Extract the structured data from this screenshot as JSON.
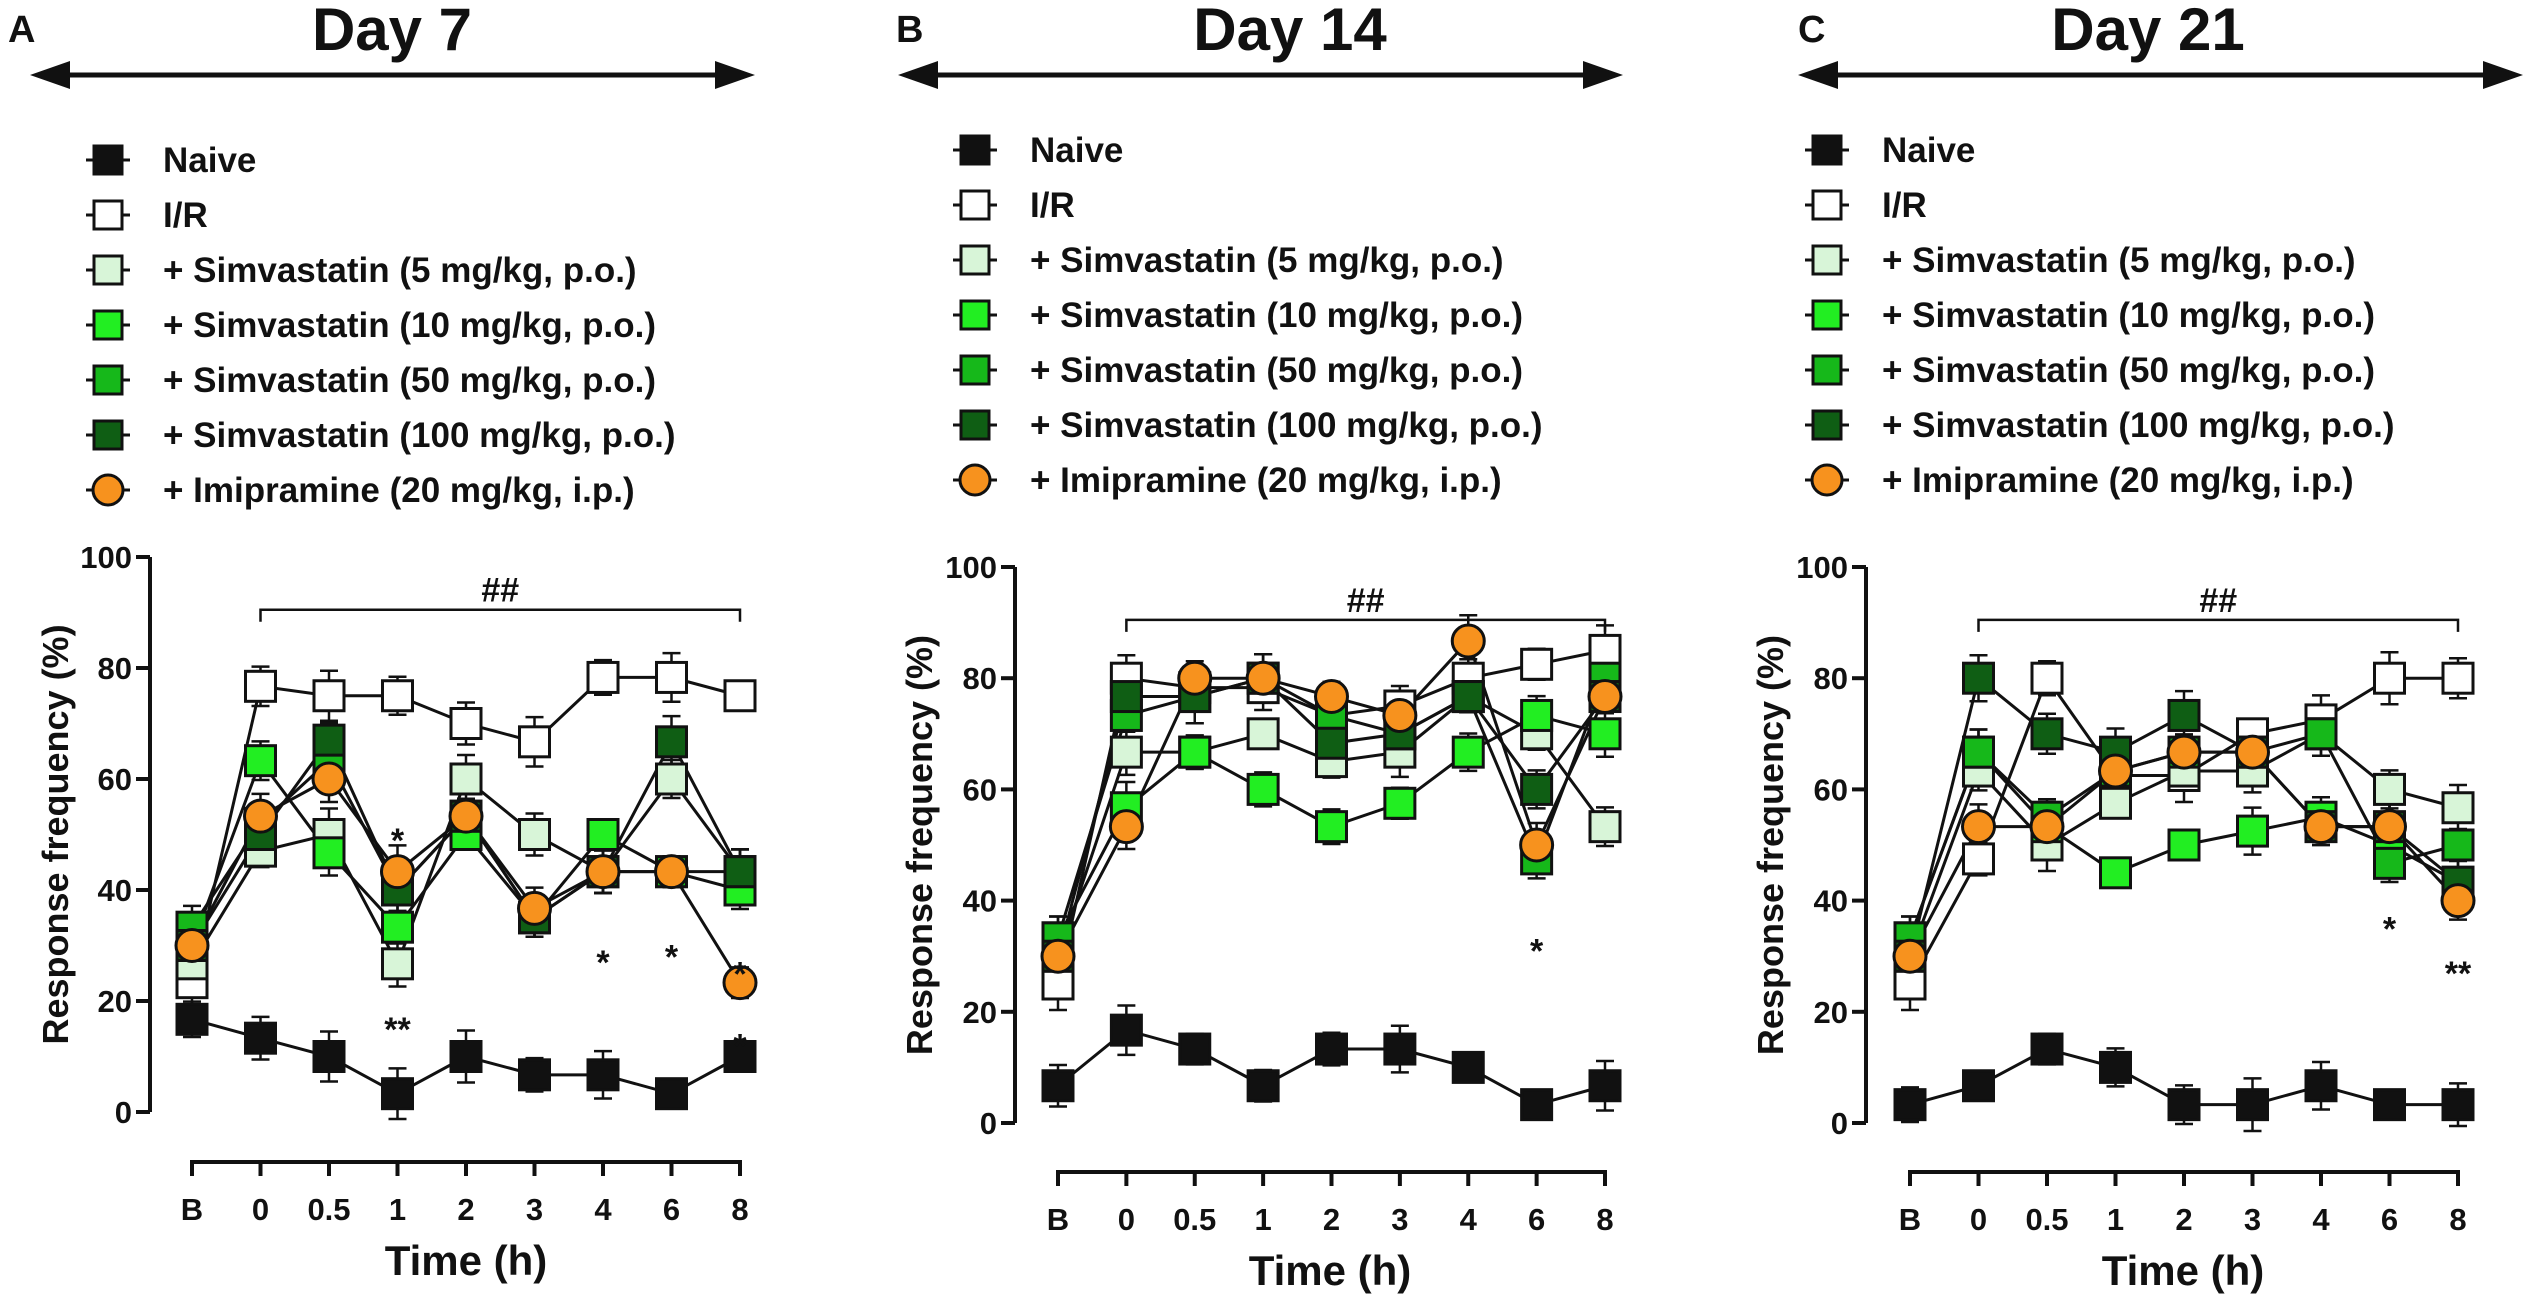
{
  "figure": {
    "series_styles": [
      {
        "name": "Naive",
        "marker": "square",
        "fill": "#111111"
      },
      {
        "name": "I/R",
        "marker": "square",
        "fill": "#ffffff"
      },
      {
        "name": "+ Simvastatin (5 mg/kg, p.o.)",
        "marker": "square",
        "fill": "#d8f5d8"
      },
      {
        "name": "+ Simvastatin (10 mg/kg, p.o.)",
        "marker": "square",
        "fill": "#22ee22"
      },
      {
        "name": "+ Simvastatin (50 mg/kg, p.o.)",
        "marker": "square",
        "fill": "#16b81a"
      },
      {
        "name": "+ Simvastatin (100 mg/kg, p.o.)",
        "marker": "square",
        "fill": "#0f5e14"
      },
      {
        "name": "+ Imipramine (20 mg/kg, i.p.)",
        "marker": "circle",
        "fill": "#f7921e"
      }
    ]
  },
  "chart_data": [
    {
      "type": "line",
      "panel": "A",
      "title": "Day 7",
      "xlabel": "Time (h)",
      "ylabel": "Response frequency (%)",
      "categories": [
        "B",
        "0",
        "0.5",
        "1",
        "2",
        "3",
        "4",
        "6",
        "8"
      ],
      "ylim": [
        0,
        100
      ],
      "yticks": [
        0,
        20,
        40,
        60,
        80,
        100
      ],
      "bracket_label": "##",
      "series": [
        {
          "name": "Naive",
          "values": [
            16.7,
            13.3,
            10,
            3.3,
            10,
            6.7,
            6.7,
            3.3,
            10
          ]
        },
        {
          "name": "I/R",
          "values": [
            23.3,
            76.7,
            75,
            75,
            70,
            66.7,
            78.3,
            78.3,
            75
          ]
        },
        {
          "name": "+ Simvastatin (5 mg/kg, p.o.)",
          "values": [
            26.7,
            47,
            50,
            26.7,
            60,
            50,
            43.3,
            60,
            43.3
          ]
        },
        {
          "name": "+ Simvastatin (10 mg/kg, p.o.)",
          "values": [
            30,
            63.3,
            46.7,
            33.3,
            50,
            35,
            50,
            43.3,
            40
          ]
        },
        {
          "name": "+ Simvastatin (50 mg/kg, p.o.)",
          "values": [
            33.3,
            52,
            63.3,
            40,
            53.3,
            35,
            43.3,
            43.3,
            43.3
          ]
        },
        {
          "name": "+ Simvastatin (100 mg/kg, p.o.)",
          "values": [
            30,
            50,
            67,
            40,
            53.3,
            35,
            43.3,
            66.7,
            43.3
          ]
        },
        {
          "name": "+ Imipramine (20 mg/kg, i.p.)",
          "values": [
            30,
            53.3,
            60,
            43.3,
            53.3,
            36.7,
            43.3,
            43.3,
            23.3
          ]
        }
      ],
      "annotations": [
        {
          "text": "*",
          "x": "1",
          "y": 49
        },
        {
          "text": "**",
          "x": "1",
          "y": 15
        },
        {
          "text": "*",
          "x": "4",
          "y": 27
        },
        {
          "text": "*",
          "x": "6",
          "y": 28
        },
        {
          "text": "*",
          "x": "8",
          "y": 25
        },
        {
          "text": "*",
          "x": "8",
          "y": 12
        }
      ]
    },
    {
      "type": "line",
      "panel": "B",
      "title": "Day 14",
      "xlabel": "Time (h)",
      "ylabel": "Response frequency (%)",
      "categories": [
        "B",
        "0",
        "0.5",
        "1",
        "2",
        "3",
        "4",
        "6",
        "8"
      ],
      "ylim": [
        0,
        100
      ],
      "yticks": [
        0,
        20,
        40,
        60,
        80,
        100
      ],
      "bracket_label": "##",
      "series": [
        {
          "name": "Naive",
          "values": [
            6.7,
            16.7,
            13.3,
            6.7,
            13.3,
            13.3,
            10,
            3.3,
            6.7
          ]
        },
        {
          "name": "I/R",
          "values": [
            25,
            80,
            78.3,
            78.3,
            73.3,
            75,
            80,
            82.5,
            85
          ]
        },
        {
          "name": "+ Simvastatin (5 mg/kg, p.o.)",
          "values": [
            30,
            66.7,
            66.7,
            70,
            65,
            66.7,
            76.7,
            70,
            53.3
          ]
        },
        {
          "name": "+ Simvastatin (10 mg/kg, p.o.)",
          "values": [
            33.3,
            56.7,
            66.7,
            60,
            53.3,
            57.5,
            66.7,
            73.3,
            70
          ]
        },
        {
          "name": "+ Simvastatin (50 mg/kg, p.o.)",
          "values": [
            33.3,
            73.3,
            76.7,
            80,
            73.3,
            70,
            76.7,
            47.5,
            80
          ]
        },
        {
          "name": "+ Simvastatin (100 mg/kg, p.o.)",
          "values": [
            30,
            76.7,
            76.7,
            80,
            68.3,
            70,
            76.7,
            60,
            76.7
          ]
        },
        {
          "name": "+ Imipramine (20 mg/kg, i.p.)",
          "values": [
            30,
            53.3,
            80,
            80,
            76.7,
            73.3,
            86.7,
            50,
            76.7
          ]
        }
      ],
      "annotations": [
        {
          "text": "*",
          "x": "6",
          "y": 31
        }
      ]
    },
    {
      "type": "line",
      "panel": "C",
      "title": "Day 21",
      "xlabel": "Time (h)",
      "ylabel": "Response frequency (%)",
      "categories": [
        "B",
        "0",
        "0.5",
        "1",
        "2",
        "3",
        "4",
        "6",
        "8"
      ],
      "ylim": [
        0,
        100
      ],
      "yticks": [
        0,
        20,
        40,
        60,
        80,
        100
      ],
      "bracket_label": "##",
      "series": [
        {
          "name": "Naive",
          "values": [
            3.3,
            6.7,
            13.3,
            10,
            3.3,
            3.3,
            6.7,
            3.3,
            3.3
          ]
        },
        {
          "name": "I/R",
          "values": [
            25,
            47.5,
            80,
            62.5,
            62.5,
            70,
            72.5,
            80,
            80
          ]
        },
        {
          "name": "+ Simvastatin (5 mg/kg, p.o.)",
          "values": [
            30,
            63.3,
            50,
            57.5,
            63.3,
            63.3,
            70,
            60,
            56.7
          ]
        },
        {
          "name": "+ Simvastatin (10 mg/kg, p.o.)",
          "values": [
            33.3,
            66.7,
            53.3,
            45,
            50,
            52.5,
            55,
            50,
            43.3
          ]
        },
        {
          "name": "+ Simvastatin (50 mg/kg, p.o.)",
          "values": [
            33.3,
            66.7,
            55,
            63.3,
            66.7,
            66.7,
            70,
            46.7,
            50
          ]
        },
        {
          "name": "+ Simvastatin (100 mg/kg, p.o.)",
          "values": [
            30,
            80,
            70,
            66.7,
            73.3,
            66.7,
            53.3,
            53.3,
            43.3
          ]
        },
        {
          "name": "+ Imipramine (20 mg/kg, i.p.)",
          "values": [
            30,
            53.3,
            53.3,
            63.3,
            66.7,
            66.7,
            53.3,
            53.3,
            40
          ]
        }
      ],
      "annotations": [
        {
          "text": "*",
          "x": "6",
          "y": 35
        },
        {
          "text": "**",
          "x": "8",
          "y": 27
        }
      ]
    }
  ]
}
